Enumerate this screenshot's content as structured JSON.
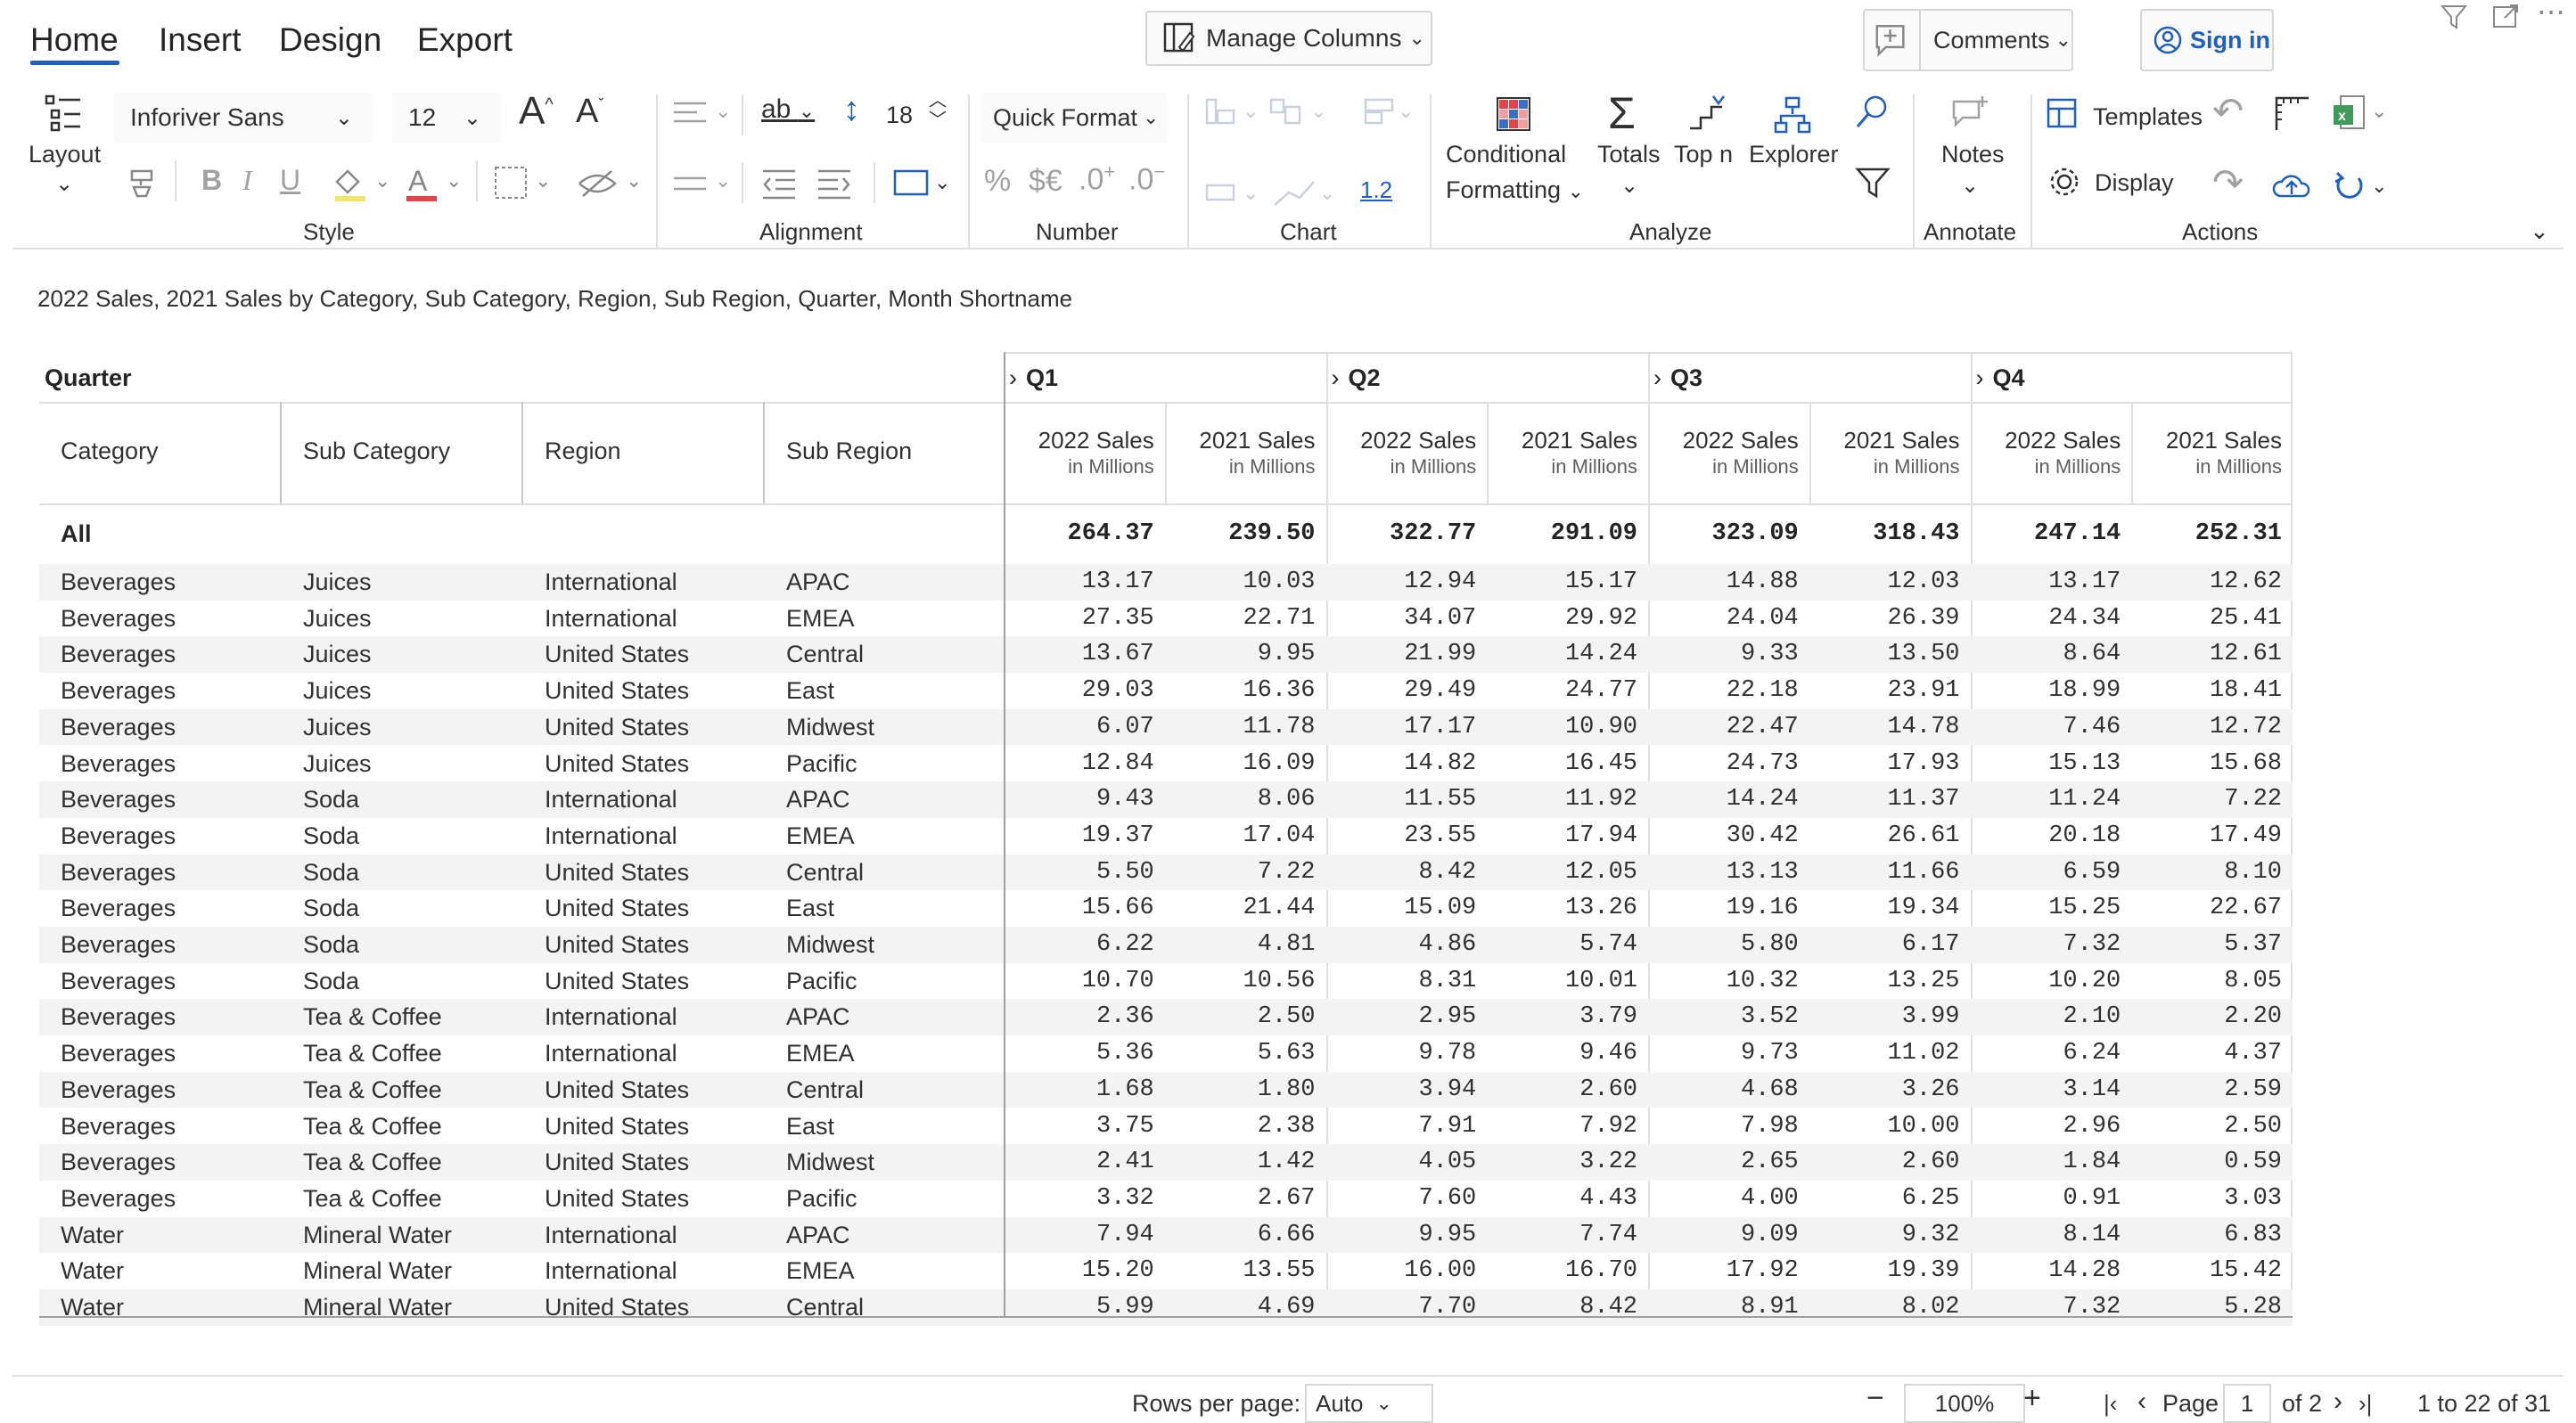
{
  "tabs": [
    {
      "label": "Home",
      "active": true
    },
    {
      "label": "Insert"
    },
    {
      "label": "Design"
    },
    {
      "label": "Export"
    }
  ],
  "toolbar": {
    "manage_columns": "Manage Columns",
    "comments": "Comments",
    "sign_in": "Sign in"
  },
  "ribbon": {
    "layout_label": "Layout",
    "font_family": "Inforiver Sans",
    "font_size": "12",
    "line_height": "18",
    "quick_format": "Quick Format",
    "number_sample": "1.2",
    "conditional_formatting": "Conditional",
    "conditional_formatting_2": "Formatting",
    "totals": "Totals",
    "top_n": "Top n",
    "explorer": "Explorer",
    "notes": "Notes",
    "templates": "Templates",
    "display": "Display",
    "groups": {
      "style": "Style",
      "alignment": "Alignment",
      "number": "Number",
      "chart": "Chart",
      "analyze": "Analyze",
      "annotate": "Annotate",
      "actions": "Actions"
    }
  },
  "report": {
    "subtitle": "2022 Sales, 2021 Sales by Category, Sub Category, Region, Sub Region, Quarter, Month Shortname",
    "quarter_header": "Quarter",
    "row_headers": [
      "Category",
      "Sub Category",
      "Region",
      "Sub Region"
    ],
    "quarters": [
      "Q1",
      "Q2",
      "Q3",
      "Q4"
    ],
    "measures": [
      "2022 Sales",
      "2021 Sales"
    ],
    "measure_unit": "in Millions",
    "total_row": {
      "label": "All",
      "values": [
        "264.37",
        "239.50",
        "322.77",
        "291.09",
        "323.09",
        "318.43",
        "247.14",
        "252.31"
      ]
    },
    "rows": [
      {
        "cat": "Beverages",
        "sub": "Juices",
        "region": "International",
        "subregion": "APAC",
        "v": [
          "13.17",
          "10.03",
          "12.94",
          "15.17",
          "14.88",
          "12.03",
          "13.17",
          "12.62"
        ]
      },
      {
        "cat": "Beverages",
        "sub": "Juices",
        "region": "International",
        "subregion": "EMEA",
        "v": [
          "27.35",
          "22.71",
          "34.07",
          "29.92",
          "24.04",
          "26.39",
          "24.34",
          "25.41"
        ]
      },
      {
        "cat": "Beverages",
        "sub": "Juices",
        "region": "United States",
        "subregion": "Central",
        "v": [
          "13.67",
          "9.95",
          "21.99",
          "14.24",
          "9.33",
          "13.50",
          "8.64",
          "12.61"
        ]
      },
      {
        "cat": "Beverages",
        "sub": "Juices",
        "region": "United States",
        "subregion": "East",
        "v": [
          "29.03",
          "16.36",
          "29.49",
          "24.77",
          "22.18",
          "23.91",
          "18.99",
          "18.41"
        ]
      },
      {
        "cat": "Beverages",
        "sub": "Juices",
        "region": "United States",
        "subregion": "Midwest",
        "v": [
          "6.07",
          "11.78",
          "17.17",
          "10.90",
          "22.47",
          "14.78",
          "7.46",
          "12.72"
        ]
      },
      {
        "cat": "Beverages",
        "sub": "Juices",
        "region": "United States",
        "subregion": "Pacific",
        "v": [
          "12.84",
          "16.09",
          "14.82",
          "16.45",
          "24.73",
          "17.93",
          "15.13",
          "15.68"
        ]
      },
      {
        "cat": "Beverages",
        "sub": "Soda",
        "region": "International",
        "subregion": "APAC",
        "v": [
          "9.43",
          "8.06",
          "11.55",
          "11.92",
          "14.24",
          "11.37",
          "11.24",
          "7.22"
        ]
      },
      {
        "cat": "Beverages",
        "sub": "Soda",
        "region": "International",
        "subregion": "EMEA",
        "v": [
          "19.37",
          "17.04",
          "23.55",
          "17.94",
          "30.42",
          "26.61",
          "20.18",
          "17.49"
        ]
      },
      {
        "cat": "Beverages",
        "sub": "Soda",
        "region": "United States",
        "subregion": "Central",
        "v": [
          "5.50",
          "7.22",
          "8.42",
          "12.05",
          "13.13",
          "11.66",
          "6.59",
          "8.10"
        ]
      },
      {
        "cat": "Beverages",
        "sub": "Soda",
        "region": "United States",
        "subregion": "East",
        "v": [
          "15.66",
          "21.44",
          "15.09",
          "13.26",
          "19.16",
          "19.34",
          "15.25",
          "22.67"
        ]
      },
      {
        "cat": "Beverages",
        "sub": "Soda",
        "region": "United States",
        "subregion": "Midwest",
        "v": [
          "6.22",
          "4.81",
          "4.86",
          "5.74",
          "5.80",
          "6.17",
          "7.32",
          "5.37"
        ]
      },
      {
        "cat": "Beverages",
        "sub": "Soda",
        "region": "United States",
        "subregion": "Pacific",
        "v": [
          "10.70",
          "10.56",
          "8.31",
          "10.01",
          "10.32",
          "13.25",
          "10.20",
          "8.05"
        ]
      },
      {
        "cat": "Beverages",
        "sub": "Tea & Coffee",
        "region": "International",
        "subregion": "APAC",
        "v": [
          "2.36",
          "2.50",
          "2.95",
          "3.79",
          "3.52",
          "3.99",
          "2.10",
          "2.20"
        ]
      },
      {
        "cat": "Beverages",
        "sub": "Tea & Coffee",
        "region": "International",
        "subregion": "EMEA",
        "v": [
          "5.36",
          "5.63",
          "9.78",
          "9.46",
          "9.73",
          "11.02",
          "6.24",
          "4.37"
        ]
      },
      {
        "cat": "Beverages",
        "sub": "Tea & Coffee",
        "region": "United States",
        "subregion": "Central",
        "v": [
          "1.68",
          "1.80",
          "3.94",
          "2.60",
          "4.68",
          "3.26",
          "3.14",
          "2.59"
        ]
      },
      {
        "cat": "Beverages",
        "sub": "Tea & Coffee",
        "region": "United States",
        "subregion": "East",
        "v": [
          "3.75",
          "2.38",
          "7.91",
          "7.92",
          "7.98",
          "10.00",
          "2.96",
          "2.50"
        ]
      },
      {
        "cat": "Beverages",
        "sub": "Tea & Coffee",
        "region": "United States",
        "subregion": "Midwest",
        "v": [
          "2.41",
          "1.42",
          "4.05",
          "3.22",
          "2.65",
          "2.60",
          "1.84",
          "0.59"
        ]
      },
      {
        "cat": "Beverages",
        "sub": "Tea & Coffee",
        "region": "United States",
        "subregion": "Pacific",
        "v": [
          "3.32",
          "2.67",
          "7.60",
          "4.43",
          "4.00",
          "6.25",
          "0.91",
          "3.03"
        ]
      },
      {
        "cat": "Water",
        "sub": "Mineral Water",
        "region": "International",
        "subregion": "APAC",
        "v": [
          "7.94",
          "6.66",
          "9.95",
          "7.74",
          "9.09",
          "9.32",
          "8.14",
          "6.83"
        ]
      },
      {
        "cat": "Water",
        "sub": "Mineral Water",
        "region": "International",
        "subregion": "EMEA",
        "v": [
          "15.20",
          "13.55",
          "16.00",
          "16.70",
          "17.92",
          "19.39",
          "14.28",
          "15.42"
        ]
      },
      {
        "cat": "Water",
        "sub": "Mineral Water",
        "region": "United States",
        "subregion": "Central",
        "v": [
          "5.99",
          "4.69",
          "7.70",
          "8.42",
          "8.91",
          "8.02",
          "7.32",
          "5.28"
        ]
      }
    ]
  },
  "footer": {
    "rows_per_page_label": "Rows per page:",
    "rows_per_page_value": "Auto",
    "zoom": "100%",
    "page_label": "Page",
    "page_number": "1",
    "page_of": "of 2",
    "range": "1 to 22 of 31"
  },
  "colors": {
    "accent": "#1f5fbf",
    "alt_row": "#f3f3f3",
    "sign_in_text": "#1f5fbf"
  }
}
